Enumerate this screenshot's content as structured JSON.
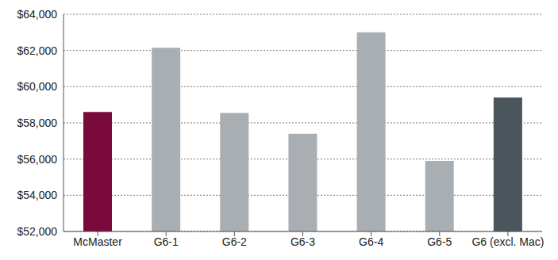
{
  "chart_data": {
    "type": "bar",
    "categories": [
      "McMaster",
      "G6-1",
      "G6-2",
      "G6-3",
      "G6-4",
      "G6-5",
      "G6 (excl. Mac)"
    ],
    "values": [
      58600,
      62150,
      58550,
      57400,
      63000,
      55900,
      59400
    ],
    "colors": [
      "#7a0a3c",
      "#a9aeb2",
      "#a9aeb2",
      "#a9aeb2",
      "#a9aeb2",
      "#a9aeb2",
      "#4a555c"
    ],
    "ylim": [
      52000,
      64000
    ],
    "yticks": [
      {
        "value": 52000,
        "label": "$52,000"
      },
      {
        "value": 54000,
        "label": "$54,000"
      },
      {
        "value": 56000,
        "label": "$56,000"
      },
      {
        "value": 58000,
        "label": "$58,000"
      },
      {
        "value": 60000,
        "label": "$60,000"
      },
      {
        "value": 62000,
        "label": "$62,000"
      },
      {
        "value": 64000,
        "label": "$64,000"
      }
    ],
    "grid": true
  }
}
